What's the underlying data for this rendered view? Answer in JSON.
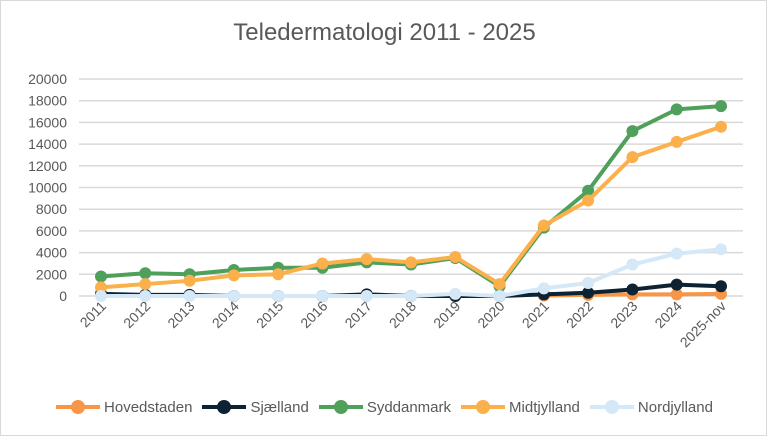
{
  "chart_data": {
    "type": "line",
    "title": "Teledermatologi 2011 - 2025",
    "xlabel": "",
    "ylabel": "",
    "categories": [
      "2011",
      "2012",
      "2013",
      "2014",
      "2015",
      "2016",
      "2017",
      "2018",
      "2019",
      "2020",
      "2021",
      "2022",
      "2023",
      "2024",
      "2025-nov"
    ],
    "ylim": [
      0,
      20000
    ],
    "yticks": [
      "0",
      "2000",
      "4000",
      "6000",
      "8000",
      "10000",
      "12000",
      "14000",
      "16000",
      "18000",
      "20000"
    ],
    "grid": true,
    "legend_position": "bottom",
    "series": [
      {
        "name": "Hovedstaden",
        "color": "#f79646",
        "values": [
          null,
          null,
          100,
          null,
          null,
          null,
          null,
          null,
          null,
          null,
          50,
          100,
          150,
          150,
          200
        ]
      },
      {
        "name": "Sjælland",
        "color": "#0d2233",
        "values": [
          200,
          100,
          100,
          0,
          0,
          0,
          150,
          0,
          0,
          0,
          150,
          300,
          600,
          1050,
          900
        ]
      },
      {
        "name": "Syddanmark",
        "color": "#4fa05a",
        "values": [
          1800,
          2100,
          2000,
          2400,
          2600,
          2600,
          3100,
          2900,
          3500,
          900,
          6300,
          9700,
          15200,
          17200,
          17500
        ]
      },
      {
        "name": "Midtjylland",
        "color": "#fbb04c",
        "values": [
          800,
          1100,
          1400,
          1900,
          2000,
          3000,
          3400,
          3100,
          3600,
          1100,
          6500,
          8800,
          12800,
          14200,
          15600
        ]
      },
      {
        "name": "Nordjylland",
        "color": "#d4e8f8",
        "values": [
          0,
          0,
          0,
          0,
          0,
          0,
          0,
          0,
          200,
          0,
          700,
          1200,
          2900,
          3900,
          4300
        ]
      }
    ]
  }
}
